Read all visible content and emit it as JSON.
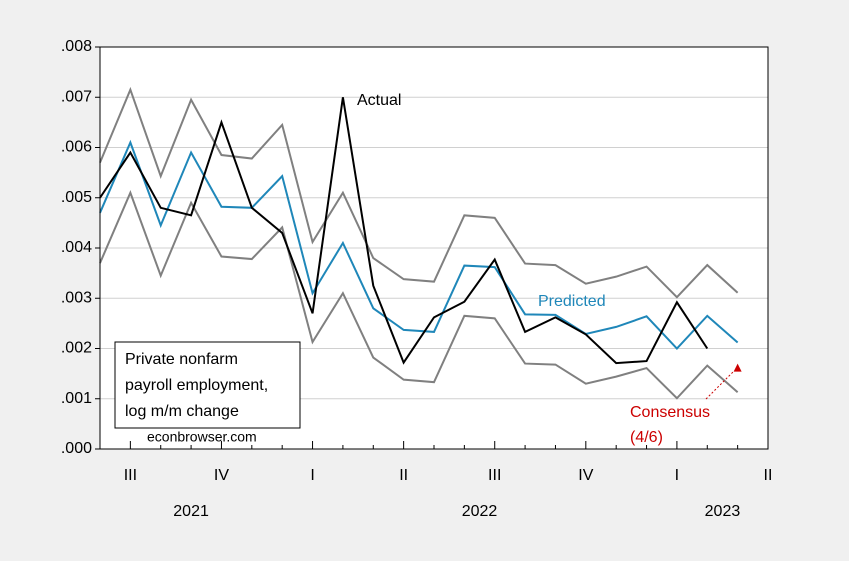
{
  "chart_data": {
    "type": "line",
    "categories": [
      null,
      "III",
      null,
      null,
      "IV",
      null,
      null,
      "I",
      null,
      null,
      "II",
      null,
      null,
      "III",
      null,
      null,
      "IV",
      null,
      null,
      "I",
      null,
      null,
      "II"
    ],
    "years": [
      "2021",
      "2022",
      "2023"
    ],
    "ylim": [
      0,
      0.008
    ],
    "yticks": [
      {
        "value": 0,
        "label": ".000"
      },
      {
        "value": 0.001,
        "label": ".001"
      },
      {
        "value": 0.002,
        "label": ".002"
      },
      {
        "value": 0.003,
        "label": ".003"
      },
      {
        "value": 0.004,
        "label": ".004"
      },
      {
        "value": 0.005,
        "label": ".005"
      },
      {
        "value": 0.006,
        "label": ".006"
      },
      {
        "value": 0.007,
        "label": ".007"
      },
      {
        "value": 0.008,
        "label": ".008"
      }
    ],
    "grid": true,
    "series": [
      {
        "name": "Actual",
        "color": "#000000",
        "values": [
          0.005,
          0.0059,
          0.0048,
          0.00465,
          0.0065,
          0.0048,
          0.0043,
          0.0027,
          0.007,
          0.00325,
          0.00172,
          0.00262,
          0.00293,
          0.00377,
          0.00233,
          0.00262,
          0.00228,
          0.00171,
          0.00175,
          0.00292,
          0.002,
          null,
          null
        ]
      },
      {
        "name": "Predicted",
        "color": "#1f87b9",
        "values": [
          0.0047,
          0.0061,
          0.00445,
          0.0059,
          0.00482,
          0.0048,
          0.00543,
          0.0031,
          0.0041,
          0.0028,
          0.00237,
          0.00233,
          0.00365,
          0.00362,
          0.00268,
          0.00267,
          0.00229,
          0.00243,
          0.00264,
          0.002,
          0.00265,
          0.00212,
          null
        ]
      },
      {
        "color": "#808080",
        "values": [
          0.0057,
          0.00715,
          0.00543,
          0.00695,
          0.00585,
          0.00578,
          0.00645,
          0.00412,
          0.0051,
          0.0038,
          0.00338,
          0.00333,
          0.00465,
          0.0046,
          0.00369,
          0.00366,
          0.00329,
          0.00343,
          0.00363,
          0.00302,
          0.00366,
          0.00311,
          null
        ]
      },
      {
        "color": "#808080",
        "values": [
          0.0037,
          0.0051,
          0.00345,
          0.0049,
          0.00383,
          0.00378,
          0.00441,
          0.00213,
          0.0031,
          0.00182,
          0.00138,
          0.00133,
          0.00265,
          0.0026,
          0.0017,
          0.00168,
          0.0013,
          0.00144,
          0.00161,
          0.00101,
          0.00166,
          0.00113,
          null
        ]
      }
    ],
    "consensus": {
      "lines": [
        "Consensus",
        "(4/6)"
      ],
      "color": "#cc0000",
      "index": 21,
      "value": 0.0016
    },
    "box_text": [
      "Private nonfarm",
      "payroll employment,",
      "log m/m change"
    ],
    "source": "econbrowser.com"
  }
}
